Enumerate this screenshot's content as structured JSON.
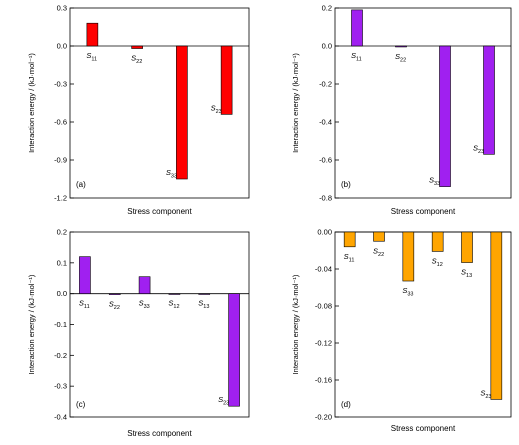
{
  "figure": {
    "bar_label_prefix": "S"
  },
  "chart_data": [
    {
      "type": "bar",
      "panel_label": "(a)",
      "xlabel": "Stress component",
      "ylabel": "Interaction energy / (kJ·mol⁻¹)",
      "ylim": [
        -1.2,
        0.3
      ],
      "yticks": [
        0.3,
        0.0,
        -0.3,
        -0.6,
        -0.9,
        -1.2
      ],
      "ytick_labels": [
        "0.3",
        "0.0",
        "-0.3",
        "-0.6",
        "-0.9",
        "-1.2"
      ],
      "categories": [
        "11",
        "22",
        "33",
        "23"
      ],
      "values": [
        0.18,
        -0.02,
        -1.05,
        -0.54
      ],
      "bar_color": "#ff0000",
      "grid": false
    },
    {
      "type": "bar",
      "panel_label": "(b)",
      "xlabel": "Stress component",
      "ylabel": "Interaction energy / (kJ·mol⁻¹)",
      "ylim": [
        -0.8,
        0.2
      ],
      "yticks": [
        0.2,
        0.0,
        -0.2,
        -0.4,
        -0.6,
        -0.8
      ],
      "ytick_labels": [
        "0.2",
        "0.0",
        "-0.2",
        "-0.4",
        "-0.6",
        "-0.8"
      ],
      "categories": [
        "11",
        "22",
        "33",
        "23"
      ],
      "values": [
        0.19,
        -0.005,
        -0.74,
        -0.57
      ],
      "bar_color": "#a020f0",
      "grid": false
    },
    {
      "type": "bar",
      "panel_label": "(c)",
      "xlabel": "Stress component",
      "ylabel": "Interaction energy / (kJ·mol⁻¹)",
      "ylim": [
        -0.4,
        0.2
      ],
      "yticks": [
        0.2,
        0.1,
        0.0,
        -0.1,
        -0.2,
        -0.3,
        -0.4
      ],
      "ytick_labels": [
        "0.2",
        "0.1",
        "0.0",
        "-0.1",
        "-0.2",
        "-0.3",
        "-0.4"
      ],
      "categories": [
        "11",
        "22",
        "33",
        "12",
        "13",
        "23"
      ],
      "values": [
        0.12,
        -0.003,
        0.055,
        0.0,
        0.0,
        -0.365
      ],
      "bar_color": "#a020f0",
      "grid": false
    },
    {
      "type": "bar",
      "panel_label": "(d)",
      "xlabel": "Stress component",
      "ylabel": "Interaction energy / (kJ·mol⁻¹)",
      "ylim": [
        -0.2,
        0.0
      ],
      "yticks": [
        0.0,
        -0.04,
        -0.08,
        -0.12,
        -0.16,
        -0.2
      ],
      "ytick_labels": [
        "0.00",
        "-0.04",
        "-0.08",
        "-0.12",
        "-0.16",
        "-0.20"
      ],
      "categories": [
        "11",
        "22",
        "33",
        "12",
        "13",
        "23"
      ],
      "values": [
        -0.016,
        -0.01,
        -0.053,
        -0.021,
        -0.033,
        -0.181
      ],
      "bar_color": "#ffa500",
      "grid": false
    }
  ]
}
